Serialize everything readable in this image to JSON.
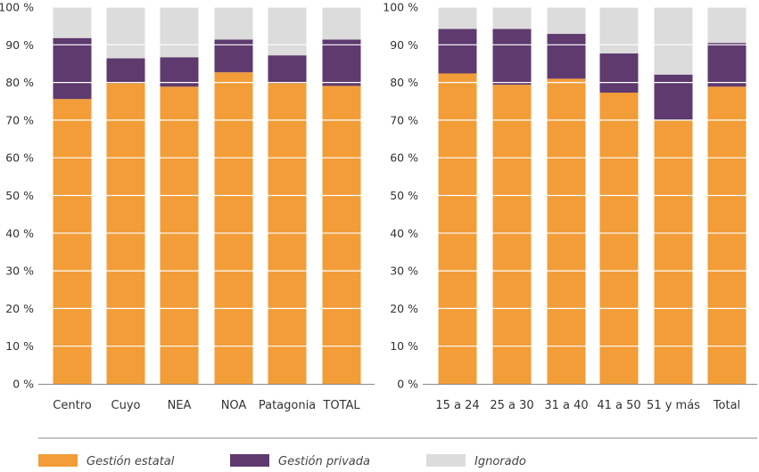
{
  "colors": {
    "gestion_estatal": "#F29D38",
    "gestion_privada": "#5E3A6E",
    "ignorado": "#DCDCDC",
    "axis": "#888888",
    "grid": "#ffffff"
  },
  "legend": [
    {
      "key": "gestion_estatal",
      "label": "Gestión estatal"
    },
    {
      "key": "gestion_privada",
      "label": "Gestión privada"
    },
    {
      "key": "ignorado",
      "label": "Ignorado"
    }
  ],
  "chart_data": [
    {
      "type": "bar",
      "stacked": true,
      "categories": [
        "Centro",
        "Cuyo",
        "NEA",
        "NOA",
        "Patagonia",
        "TOTAL"
      ],
      "series": [
        {
          "name": "Gestión estatal",
          "key": "gestion_estatal",
          "values": [
            75.6,
            79.8,
            78.9,
            82.7,
            79.8,
            79.1
          ]
        },
        {
          "name": "Gestión privada",
          "key": "gestion_privada",
          "values": [
            16.2,
            6.6,
            7.8,
            8.7,
            7.4,
            12.3
          ]
        },
        {
          "name": "Ignorado",
          "key": "ignorado",
          "values": [
            8.2,
            13.6,
            13.3,
            8.6,
            12.8,
            8.6
          ]
        }
      ],
      "ylim": [
        0,
        100
      ],
      "yticks": [
        "0 %",
        "10 %",
        "20 %",
        "30 %",
        "40 %",
        "50 %",
        "60 %",
        "70 %",
        "80 %",
        "90 %",
        "100 %"
      ],
      "grid": true
    },
    {
      "type": "bar",
      "stacked": true,
      "categories": [
        "15 a 24",
        "25 a 30",
        "31 a 40",
        "41 a 50",
        "51 y más",
        "Total"
      ],
      "series": [
        {
          "name": "Gestión estatal",
          "key": "gestion_estatal",
          "values": [
            82.4,
            79.4,
            81.0,
            77.3,
            70.1,
            78.9
          ]
        },
        {
          "name": "Gestión privada",
          "key": "gestion_privada",
          "values": [
            11.8,
            14.8,
            11.9,
            10.4,
            12.0,
            11.6
          ]
        },
        {
          "name": "Ignorado",
          "key": "ignorado",
          "values": [
            5.8,
            5.8,
            7.1,
            12.3,
            17.9,
            9.5
          ]
        }
      ],
      "ylim": [
        0,
        100
      ],
      "yticks": [
        "0 %",
        "10 %",
        "20 %",
        "30 %",
        "40 %",
        "50 %",
        "60 %",
        "70 %",
        "80 %",
        "90 %",
        "100 %"
      ],
      "grid": true
    }
  ]
}
